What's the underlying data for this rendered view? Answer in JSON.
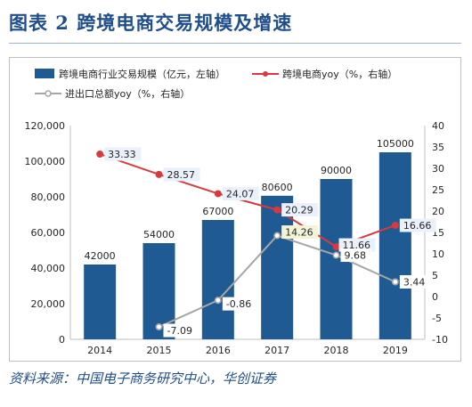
{
  "figure": {
    "title": "图表 2   跨境电商交易规模及增速",
    "source": "资料来源：中国电子商务研究中心，华创证券"
  },
  "chart_data": {
    "type": "bar",
    "categories": [
      "2014",
      "2015",
      "2016",
      "2017",
      "2018",
      "2019"
    ],
    "series": [
      {
        "name": "跨境电商行业交易规模（亿元，左轴）",
        "type": "bar",
        "axis": "left",
        "color": "#1f5a93",
        "values": [
          42000,
          54000,
          67000,
          80600,
          90000,
          105000
        ],
        "labels": [
          "42000",
          "54000",
          "67000",
          "80600",
          "90000",
          "105000"
        ]
      },
      {
        "name": "跨境电商yoy（%，右轴）",
        "type": "line",
        "axis": "right",
        "color": "#d9393e",
        "values": [
          33.33,
          28.57,
          24.07,
          20.29,
          11.66,
          16.66
        ],
        "labels": [
          "33.33",
          "28.57",
          "24.07",
          "20.29",
          "11.66",
          "16.66"
        ]
      },
      {
        "name": "进出口总额yoy（%，右轴）",
        "type": "line",
        "axis": "right",
        "color": "#a6a6a6",
        "values": [
          null,
          -7.09,
          -0.86,
          14.26,
          9.68,
          3.44
        ],
        "labels": [
          "",
          "-7.09",
          "-0.86",
          "14.26",
          "9.68",
          "3.44"
        ]
      }
    ],
    "y_left": {
      "min": 0,
      "max": 120000,
      "ticks": [
        "0",
        "20,000",
        "40,000",
        "60,000",
        "80,000",
        "100,000",
        "120,000"
      ]
    },
    "y_right": {
      "min": -10,
      "max": 40,
      "ticks": [
        "-10",
        "-5",
        "0",
        "5",
        "10",
        "15",
        "20",
        "25",
        "30",
        "35",
        "40"
      ]
    },
    "grid": false,
    "legend_position": "top"
  }
}
